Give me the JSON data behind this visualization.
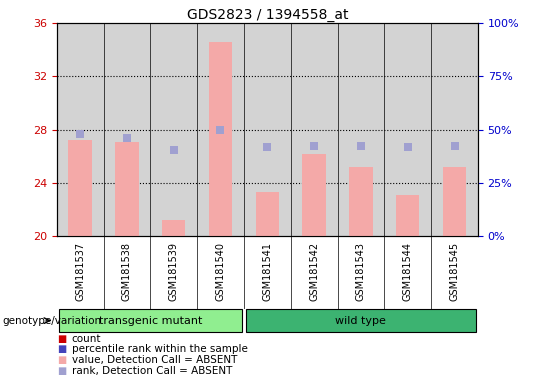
{
  "title": "GDS2823 / 1394558_at",
  "samples": [
    "GSM181537",
    "GSM181538",
    "GSM181539",
    "GSM181540",
    "GSM181541",
    "GSM181542",
    "GSM181543",
    "GSM181544",
    "GSM181545"
  ],
  "bar_values": [
    27.2,
    27.1,
    21.2,
    34.6,
    23.3,
    26.2,
    25.2,
    23.1,
    25.2
  ],
  "rank_values": [
    27.7,
    27.4,
    26.5,
    28.0,
    26.7,
    26.8,
    26.8,
    26.7,
    26.8
  ],
  "bar_color": "#f4a9a8",
  "rank_color": "#a0a0d0",
  "ylim_left": [
    20,
    36
  ],
  "ylim_right": [
    0,
    100
  ],
  "yticks_left": [
    20,
    24,
    28,
    32,
    36
  ],
  "yticks_right": [
    0,
    25,
    50,
    75,
    100
  ],
  "ytick_labels_right": [
    "0%",
    "25%",
    "50%",
    "75%",
    "100%"
  ],
  "grid_values": [
    24,
    28,
    32
  ],
  "groups": [
    {
      "label": "transgenic mutant",
      "start": 0,
      "end": 3,
      "color": "#90ee90"
    },
    {
      "label": "wild type",
      "start": 4,
      "end": 8,
      "color": "#3cb371"
    }
  ],
  "group_label": "genotype/variation",
  "legend_items": [
    {
      "color": "#cc0000",
      "label": "count"
    },
    {
      "color": "#4444bb",
      "label": "percentile rank within the sample"
    },
    {
      "color": "#f4a9a8",
      "label": "value, Detection Call = ABSENT"
    },
    {
      "color": "#a0a0d0",
      "label": "rank, Detection Call = ABSENT"
    }
  ],
  "bar_width": 0.5,
  "rank_marker_size": 40,
  "plot_bg_color": "#d3d3d3",
  "left_tick_color": "#cc0000",
  "right_tick_color": "#0000cc"
}
